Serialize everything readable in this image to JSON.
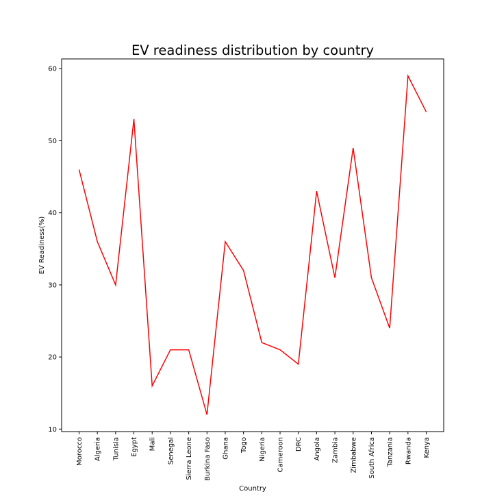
{
  "chart_data": {
    "type": "line",
    "title": "EV readiness distribution by country",
    "xlabel": "Country",
    "ylabel": "EV Readiness(%)",
    "categories": [
      "Morocco",
      "Algeria",
      "Tunisia",
      "Egypt",
      "Mali",
      "Senegal",
      "Sierra Leone",
      "Burkina Faso",
      "Ghana",
      "Togo",
      "Nigeria",
      "Cameroon",
      "DRC",
      "Angola",
      "Zambia",
      "Zimbabwe",
      "South Africa",
      "Tanzania",
      "Rwanda",
      "Kenya"
    ],
    "series": [
      {
        "values": [
          46,
          36,
          30,
          53,
          16,
          21,
          21,
          12,
          36,
          32,
          22,
          21,
          19,
          43,
          31,
          49,
          31,
          24,
          59,
          54
        ],
        "color": "#ff0000"
      }
    ],
    "ylim": [
      9.65,
      61.35
    ],
    "yticks": [
      10,
      20,
      30,
      40,
      50,
      60
    ],
    "grid": false,
    "legend": "none"
  }
}
